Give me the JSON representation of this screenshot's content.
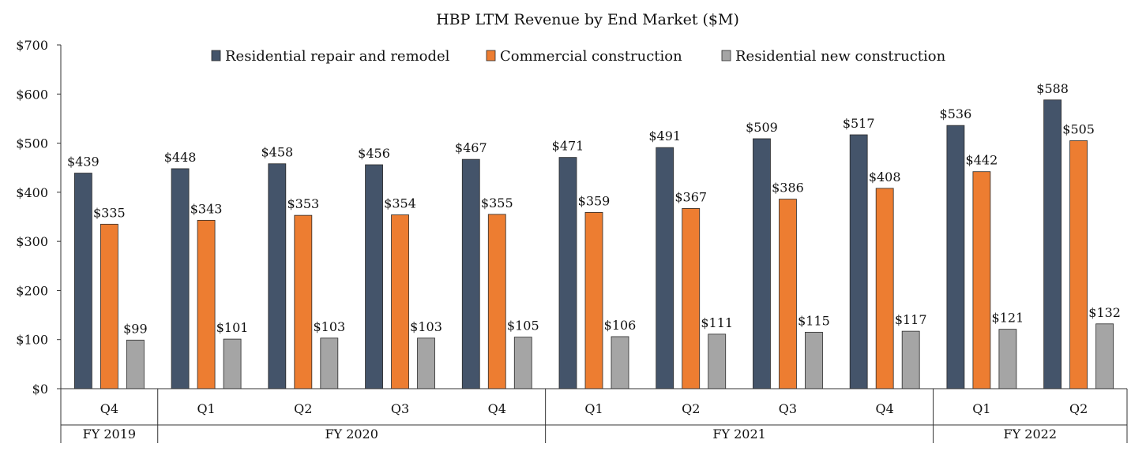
{
  "chart_data": {
    "type": "bar",
    "title": "HBP LTM Revenue by End Market  ($M)",
    "xlabel": "",
    "ylabel": "",
    "ylim": [
      0,
      700
    ],
    "yticks": [
      0,
      100,
      200,
      300,
      400,
      500,
      600,
      700
    ],
    "ytick_labels": [
      "$0",
      "$100",
      "$200",
      "$300",
      "$400",
      "$500",
      "$600",
      "$700"
    ],
    "categories": [
      "Q4",
      "Q1",
      "Q2",
      "Q3",
      "Q4",
      "Q1",
      "Q2",
      "Q3",
      "Q4",
      "Q1",
      "Q2"
    ],
    "groups": [
      {
        "label": "FY 2019",
        "count": 1
      },
      {
        "label": "FY 2020",
        "count": 4
      },
      {
        "label": "FY 2021",
        "count": 4
      },
      {
        "label": "FY 2022",
        "count": 2
      }
    ],
    "series": [
      {
        "name": "Residential repair and remodel",
        "color": "#44546a",
        "values": [
          439,
          448,
          458,
          456,
          467,
          471,
          491,
          509,
          517,
          536,
          588
        ],
        "labels": [
          "$439",
          "$448",
          "$458",
          "$456",
          "$467",
          "$471",
          "$491",
          "$509",
          "$517",
          "$536",
          "$588"
        ]
      },
      {
        "name": "Commercial construction",
        "color": "#ed7d31",
        "values": [
          335,
          343,
          353,
          354,
          355,
          359,
          367,
          386,
          408,
          442,
          505
        ],
        "labels": [
          "$335",
          "$343",
          "$353",
          "$354",
          "$355",
          "$359",
          "$367",
          "$386",
          "$408",
          "$442",
          "$505"
        ]
      },
      {
        "name": "Residential new construction",
        "color": "#a5a5a5",
        "values": [
          99,
          101,
          103,
          103,
          105,
          106,
          111,
          115,
          117,
          121,
          132
        ],
        "labels": [
          "$99",
          "$101",
          "$103",
          "$103",
          "$105",
          "$106",
          "$111",
          "$115",
          "$117",
          "$121",
          "$132"
        ]
      }
    ],
    "legend_position": "top",
    "grid": false
  }
}
